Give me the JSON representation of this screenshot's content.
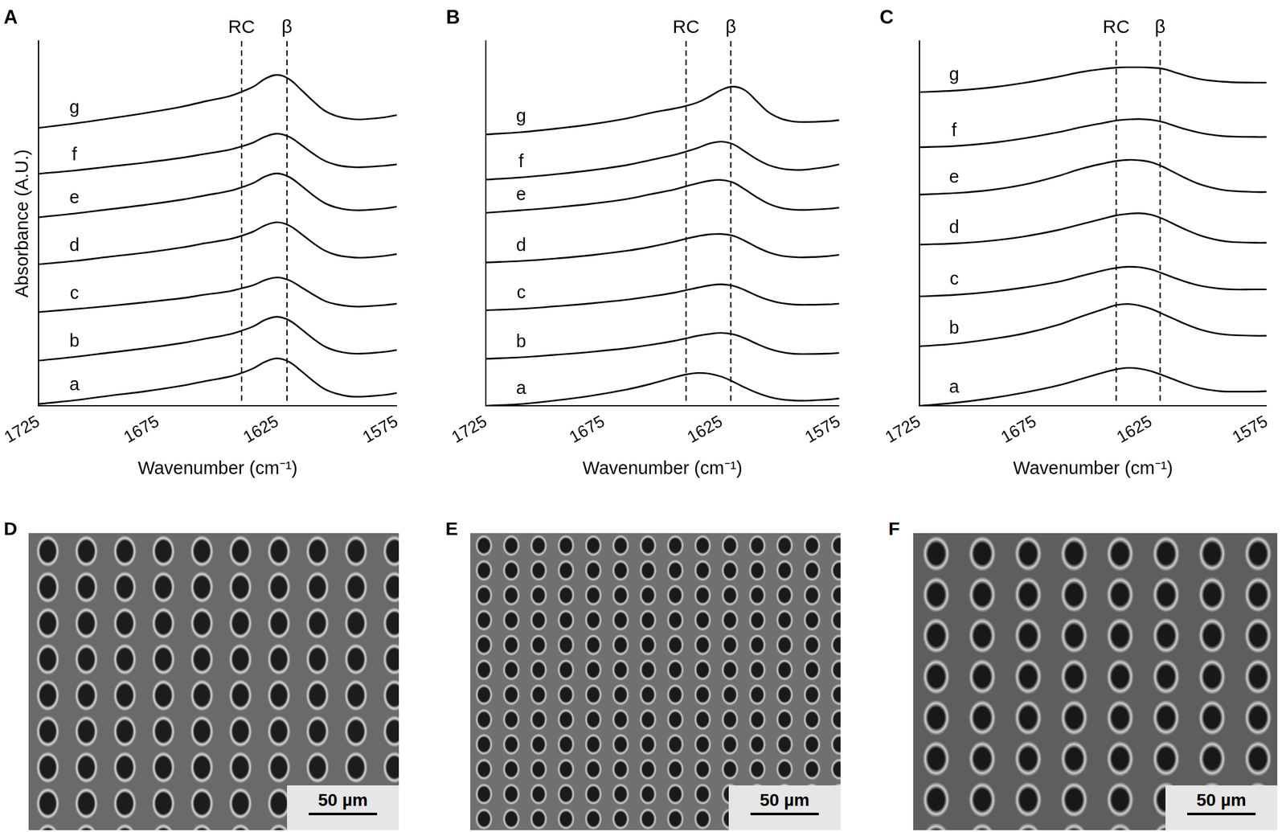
{
  "chart_data": [
    {
      "type": "line",
      "title": "A",
      "y_label": "Absorbance (A.U.)",
      "x_label": "Wavenumber (cm⁻¹)",
      "color": "#000000",
      "grid": false,
      "tick_labels": "x",
      "xlim": [
        1725,
        1575
      ],
      "xticks": [
        1725,
        1675,
        1625,
        1575
      ],
      "ylim": [
        0,
        10
      ],
      "yticks": [],
      "annotations": [
        {
          "text": "RC",
          "x": 1640
        },
        {
          "text": "β",
          "x": 1621
        }
      ],
      "x": [
        1725,
        1710,
        1695,
        1680,
        1665,
        1655,
        1645,
        1640,
        1635,
        1630,
        1625,
        1620,
        1615,
        1610,
        1605,
        1600,
        1595,
        1590,
        1580,
        1575
      ],
      "series": [
        {
          "name": "a",
          "values": [
            0.05,
            0.15,
            0.28,
            0.4,
            0.55,
            0.68,
            0.8,
            0.9,
            1.03,
            1.21,
            1.3,
            1.2,
            0.95,
            0.68,
            0.45,
            0.33,
            0.26,
            0.25,
            0.3,
            0.35
          ]
        },
        {
          "name": "b",
          "values": [
            1.24,
            1.34,
            1.46,
            1.58,
            1.72,
            1.84,
            1.96,
            2.06,
            2.18,
            2.36,
            2.44,
            2.34,
            2.1,
            1.84,
            1.62,
            1.5,
            1.44,
            1.43,
            1.48,
            1.53
          ]
        },
        {
          "name": "c",
          "values": [
            2.57,
            2.65,
            2.74,
            2.84,
            2.95,
            3.05,
            3.14,
            3.22,
            3.31,
            3.45,
            3.52,
            3.44,
            3.25,
            3.05,
            2.87,
            2.78,
            2.73,
            2.72,
            2.76,
            2.8
          ]
        },
        {
          "name": "d",
          "values": [
            3.88,
            3.97,
            4.09,
            4.2,
            4.34,
            4.46,
            4.57,
            4.66,
            4.78,
            4.95,
            5.03,
            4.94,
            4.71,
            4.46,
            4.25,
            4.13,
            4.08,
            4.06,
            4.11,
            4.16
          ]
        },
        {
          "name": "e",
          "values": [
            5.17,
            5.27,
            5.39,
            5.51,
            5.65,
            5.77,
            5.89,
            5.99,
            6.11,
            6.29,
            6.37,
            6.27,
            6.03,
            5.77,
            5.55,
            5.43,
            5.37,
            5.36,
            5.41,
            5.46
          ]
        },
        {
          "name": "f",
          "values": [
            6.36,
            6.45,
            6.56,
            6.67,
            6.8,
            6.91,
            7.02,
            7.11,
            7.22,
            7.38,
            7.46,
            7.37,
            7.15,
            6.91,
            6.71,
            6.6,
            6.55,
            6.54,
            6.58,
            6.62
          ]
        },
        {
          "name": "g",
          "values": [
            7.62,
            7.74,
            7.88,
            8.03,
            8.2,
            8.35,
            8.49,
            8.61,
            8.75,
            8.97,
            9.07,
            8.95,
            8.66,
            8.35,
            8.08,
            7.94,
            7.87,
            7.85,
            7.91,
            7.97
          ]
        }
      ]
    },
    {
      "type": "line",
      "title": "B",
      "x_label": "Wavenumber (cm⁻¹)",
      "color": "#000000",
      "grid": false,
      "tick_labels": "x",
      "xlim": [
        1725,
        1575
      ],
      "xticks": [
        1725,
        1675,
        1625,
        1575
      ],
      "ylim": [
        0,
        10
      ],
      "yticks": [],
      "annotations": [
        {
          "text": "RC",
          "x": 1640
        },
        {
          "text": "β",
          "x": 1621
        }
      ],
      "x": [
        1725,
        1710,
        1695,
        1680,
        1665,
        1655,
        1645,
        1640,
        1635,
        1630,
        1625,
        1620,
        1615,
        1610,
        1605,
        1600,
        1595,
        1590,
        1580,
        1575
      ],
      "series": [
        {
          "name": "a",
          "values": [
            0.0,
            0.05,
            0.15,
            0.28,
            0.45,
            0.6,
            0.78,
            0.86,
            0.9,
            0.88,
            0.8,
            0.66,
            0.5,
            0.36,
            0.25,
            0.18,
            0.15,
            0.14,
            0.17,
            0.2
          ]
        },
        {
          "name": "b",
          "values": [
            1.29,
            1.33,
            1.4,
            1.48,
            1.58,
            1.67,
            1.78,
            1.85,
            1.92,
            1.97,
            2.0,
            1.96,
            1.85,
            1.7,
            1.57,
            1.48,
            1.43,
            1.42,
            1.43,
            1.45
          ]
        },
        {
          "name": "c",
          "values": [
            2.62,
            2.66,
            2.73,
            2.81,
            2.91,
            3.0,
            3.1,
            3.17,
            3.24,
            3.3,
            3.33,
            3.29,
            3.17,
            3.02,
            2.9,
            2.82,
            2.78,
            2.77,
            2.78,
            2.8
          ]
        },
        {
          "name": "d",
          "values": [
            3.93,
            3.97,
            4.04,
            4.13,
            4.25,
            4.36,
            4.5,
            4.58,
            4.65,
            4.7,
            4.71,
            4.66,
            4.52,
            4.35,
            4.21,
            4.12,
            4.08,
            4.07,
            4.1,
            4.14
          ]
        },
        {
          "name": "e",
          "values": [
            5.29,
            5.36,
            5.44,
            5.54,
            5.67,
            5.8,
            5.93,
            6.02,
            6.1,
            6.17,
            6.19,
            6.12,
            5.93,
            5.72,
            5.54,
            5.43,
            5.38,
            5.37,
            5.4,
            5.43
          ]
        },
        {
          "name": "f",
          "values": [
            6.2,
            6.26,
            6.35,
            6.46,
            6.6,
            6.74,
            6.88,
            6.97,
            7.07,
            7.19,
            7.24,
            7.17,
            6.97,
            6.76,
            6.6,
            6.51,
            6.47,
            6.47,
            6.55,
            6.62
          ]
        },
        {
          "name": "g",
          "values": [
            7.44,
            7.5,
            7.6,
            7.72,
            7.88,
            8.03,
            8.15,
            8.22,
            8.32,
            8.48,
            8.66,
            8.75,
            8.65,
            8.35,
            8.05,
            7.88,
            7.8,
            7.78,
            7.8,
            7.83
          ]
        }
      ]
    },
    {
      "type": "line",
      "title": "C",
      "x_label": "Wavenumber (cm⁻¹)",
      "color": "#000000",
      "grid": false,
      "tick_labels": "x",
      "xlim": [
        1725,
        1575
      ],
      "xticks": [
        1725,
        1675,
        1625,
        1575
      ],
      "ylim": [
        0,
        10
      ],
      "yticks": [],
      "annotations": [
        {
          "text": "RC",
          "x": 1640
        },
        {
          "text": "β",
          "x": 1621
        }
      ],
      "x": [
        1725,
        1710,
        1695,
        1680,
        1665,
        1655,
        1645,
        1640,
        1635,
        1630,
        1625,
        1620,
        1615,
        1610,
        1605,
        1600,
        1595,
        1590,
        1580,
        1575
      ],
      "series": [
        {
          "name": "a",
          "values": [
            0.0,
            0.08,
            0.2,
            0.36,
            0.56,
            0.74,
            0.92,
            1.0,
            1.04,
            1.02,
            0.95,
            0.84,
            0.72,
            0.6,
            0.5,
            0.44,
            0.4,
            0.39,
            0.39,
            0.4
          ]
        },
        {
          "name": "b",
          "values": [
            1.63,
            1.7,
            1.82,
            1.98,
            2.22,
            2.45,
            2.66,
            2.76,
            2.79,
            2.75,
            2.66,
            2.52,
            2.38,
            2.24,
            2.12,
            2.03,
            1.97,
            1.94,
            1.92,
            1.92
          ]
        },
        {
          "name": "c",
          "values": [
            3.0,
            3.04,
            3.12,
            3.24,
            3.4,
            3.56,
            3.72,
            3.78,
            3.81,
            3.8,
            3.74,
            3.63,
            3.51,
            3.4,
            3.31,
            3.25,
            3.21,
            3.19,
            3.19,
            3.19
          ]
        },
        {
          "name": "d",
          "values": [
            4.42,
            4.45,
            4.52,
            4.64,
            4.82,
            4.98,
            5.14,
            5.22,
            5.26,
            5.28,
            5.24,
            5.13,
            4.98,
            4.83,
            4.7,
            4.6,
            4.53,
            4.49,
            4.47,
            4.47
          ]
        },
        {
          "name": "e",
          "values": [
            5.79,
            5.83,
            5.91,
            6.06,
            6.3,
            6.5,
            6.65,
            6.71,
            6.74,
            6.73,
            6.68,
            6.56,
            6.4,
            6.24,
            6.1,
            6.0,
            5.93,
            5.89,
            5.86,
            5.86
          ]
        },
        {
          "name": "f",
          "values": [
            7.09,
            7.12,
            7.2,
            7.33,
            7.5,
            7.64,
            7.76,
            7.82,
            7.85,
            7.86,
            7.84,
            7.78,
            7.68,
            7.58,
            7.5,
            7.44,
            7.4,
            7.38,
            7.37,
            7.37
          ]
        },
        {
          "name": "g",
          "values": [
            8.6,
            8.64,
            8.72,
            8.85,
            9.02,
            9.15,
            9.24,
            9.27,
            9.28,
            9.28,
            9.27,
            9.24,
            9.15,
            9.05,
            8.97,
            8.92,
            8.89,
            8.87,
            8.86,
            8.86
          ]
        }
      ]
    }
  ],
  "images": [
    {
      "label": "D",
      "scale_bar": "50 µm"
    },
    {
      "label": "E",
      "scale_bar": "50 µm"
    },
    {
      "label": "F",
      "scale_bar": "50 µm"
    }
  ]
}
